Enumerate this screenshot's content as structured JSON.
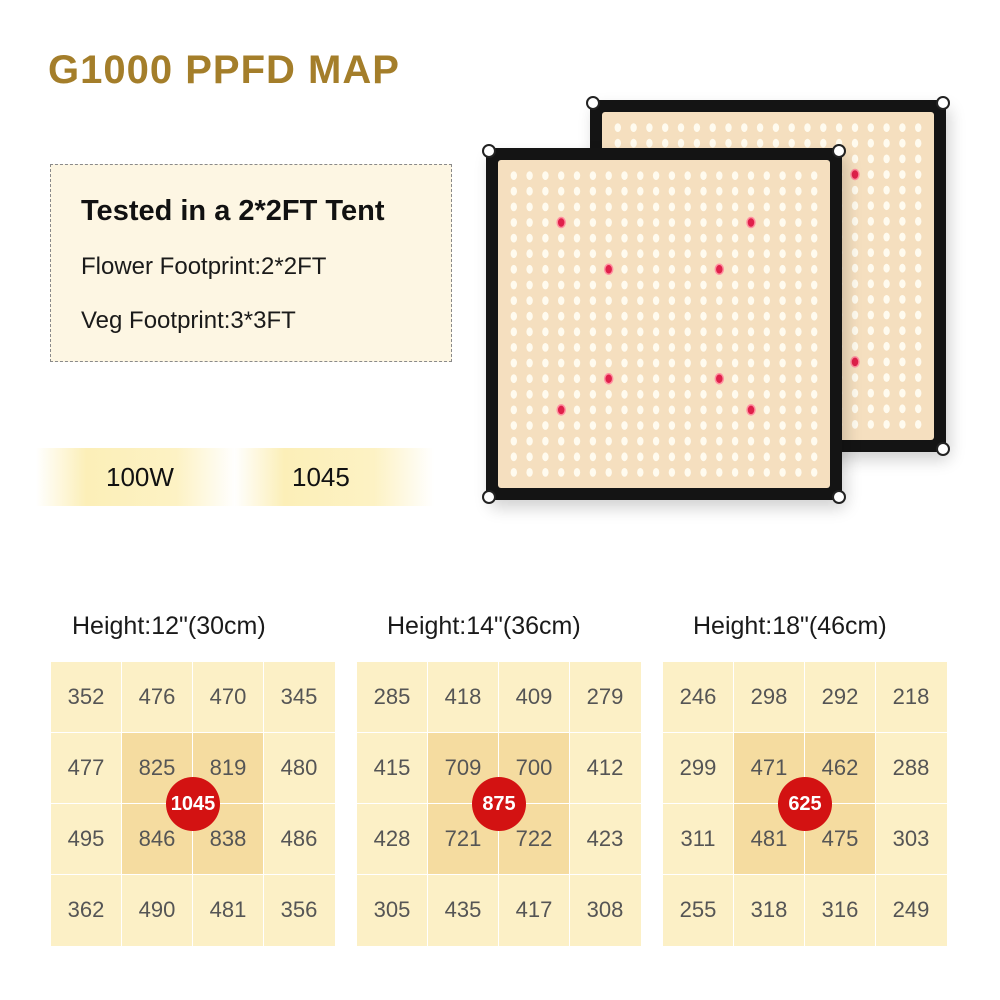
{
  "title": "G1000 PPFD MAP",
  "info": {
    "heading": "Tested in a 2*2FT Tent",
    "flower": "Flower Footprint:2*2FT",
    "veg": "Veg Footprint:3*3FT"
  },
  "stats": {
    "power": "100W",
    "ppfd": "1045"
  },
  "colors": {
    "title": "#a47e2a",
    "peak": "#d31212",
    "grid_outer": "#fcf0c6",
    "grid_inner": "#f5dca0"
  },
  "grids": [
    {
      "label": "Height:12\"(30cm)",
      "peak": "1045",
      "cells": [
        [
          "352",
          "476",
          "470",
          "345"
        ],
        [
          "477",
          "825",
          "819",
          "480"
        ],
        [
          "495",
          "846",
          "838",
          "486"
        ],
        [
          "362",
          "490",
          "481",
          "356"
        ]
      ]
    },
    {
      "label": "Height:14\"(36cm)",
      "peak": "875",
      "cells": [
        [
          "285",
          "418",
          "409",
          "279"
        ],
        [
          "415",
          "709",
          "700",
          "412"
        ],
        [
          "428",
          "721",
          "722",
          "423"
        ],
        [
          "305",
          "435",
          "417",
          "308"
        ]
      ]
    },
    {
      "label": "Height:18\"(46cm)",
      "peak": "625",
      "cells": [
        [
          "246",
          "298",
          "292",
          "218"
        ],
        [
          "299",
          "471",
          "462",
          "288"
        ],
        [
          "311",
          "481",
          "475",
          "303"
        ],
        [
          "255",
          "318",
          "316",
          "249"
        ]
      ]
    }
  ]
}
